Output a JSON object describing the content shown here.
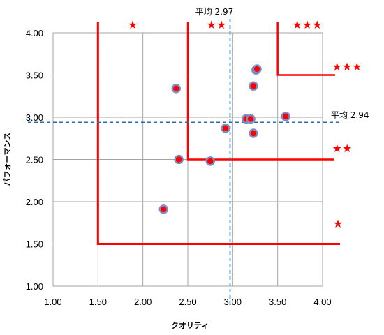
{
  "chart_data": {
    "type": "scatter",
    "xlabel": "クオリティ",
    "ylabel": "パフォーマンス",
    "xlim": [
      1.0,
      4.0
    ],
    "ylim": [
      1.0,
      4.0
    ],
    "x_ticks": [
      "1.00",
      "1.50",
      "2.00",
      "2.50",
      "3.00",
      "3.50",
      "4.00"
    ],
    "y_ticks": [
      "1.00",
      "1.50",
      "2.00",
      "2.50",
      "3.00",
      "3.50",
      "4.00"
    ],
    "grid": true,
    "points": [
      {
        "x": 2.23,
        "y": 1.91
      },
      {
        "x": 2.37,
        "y": 3.34
      },
      {
        "x": 2.4,
        "y": 2.5
      },
      {
        "x": 2.75,
        "y": 2.48
      },
      {
        "x": 2.92,
        "y": 2.87
      },
      {
        "x": 3.15,
        "y": 2.98
      },
      {
        "x": 3.2,
        "y": 2.98
      },
      {
        "x": 3.23,
        "y": 2.81
      },
      {
        "x": 3.23,
        "y": 3.37
      },
      {
        "x": 3.26,
        "y": 3.56
      },
      {
        "x": 3.27,
        "y": 3.57
      },
      {
        "x": 3.59,
        "y": 3.01
      }
    ],
    "average_x": {
      "value": 2.97,
      "label": "平均 2.97"
    },
    "average_y": {
      "value": 2.94,
      "label": "平均 2.94"
    },
    "zone_boundaries": [
      1.5,
      2.5,
      3.5
    ],
    "rating_stars": {
      "one": "★",
      "two": "★★",
      "three": "★★★"
    },
    "colors": {
      "point_fill": "#ff0000",
      "point_ring": "#7b8fc7",
      "zone_line": "#ff0000",
      "average_line": "#1f6fb5",
      "grid": "#a6a6a6"
    }
  }
}
